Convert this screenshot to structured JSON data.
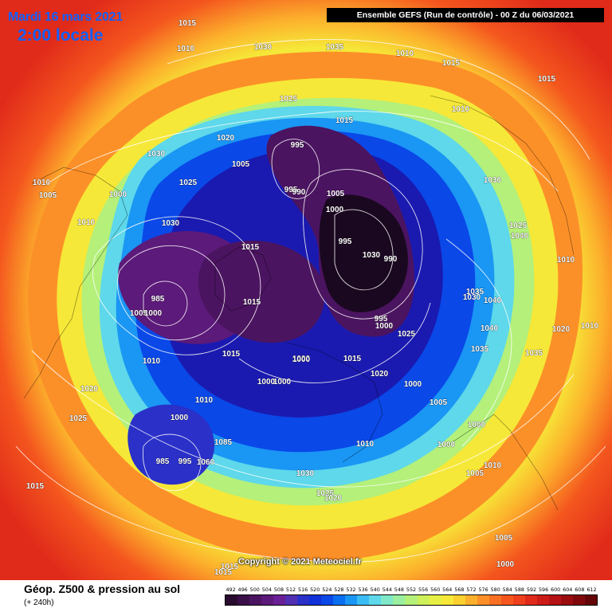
{
  "header": {
    "date": "Mardi 16 mars 2021",
    "time": "2:00 locale",
    "run": "Ensemble GEFS  (Run de contrôle)  -  00 Z du 06/03/2021"
  },
  "footer": {
    "copyright": "Copyright © 2021 Meteociel.fr",
    "title": "Géop. Z500 & pression au sol",
    "subtitle": "(+ 240h)"
  },
  "scale": {
    "labels": [
      "492",
      "496",
      "500",
      "504",
      "508",
      "512",
      "516",
      "520",
      "524",
      "528",
      "532",
      "536",
      "540",
      "544",
      "548",
      "552",
      "556",
      "560",
      "564",
      "568",
      "572",
      "576",
      "580",
      "584",
      "588",
      "592",
      "596",
      "600",
      "604",
      "608",
      "612"
    ],
    "colors": [
      "#2a0a2e",
      "#3a0f47",
      "#4b1460",
      "#5c1a7a",
      "#6a2096",
      "#5030b0",
      "#2a30c8",
      "#1030d8",
      "#0a48e8",
      "#0a6ef0",
      "#1a96f4",
      "#3abcf4",
      "#5ed8ea",
      "#7ee8c8",
      "#9af0a0",
      "#b4f07a",
      "#cef05a",
      "#e6f044",
      "#f6e838",
      "#fcd030",
      "#fcb02c",
      "#fc9028",
      "#f87022",
      "#f4561e",
      "#ee401c",
      "#e02a1a",
      "#cc1c18",
      "#b41214",
      "#9a0c10",
      "#80080c",
      "#640408"
    ]
  },
  "pressure_labels": [
    "1015",
    "1010",
    "1030",
    "1035",
    "1010",
    "1015",
    "1015",
    "1025",
    "1015",
    "1010",
    "1020",
    "995",
    "1030",
    "1030",
    "1005",
    "1025",
    "995",
    "990",
    "1005",
    "1010",
    "1005",
    "1000",
    "1000",
    "1030",
    "1015",
    "1010",
    "1025",
    "1040",
    "995",
    "990",
    "1030",
    "1010",
    "1035",
    "1030",
    "1040",
    "985",
    "1015",
    "1005",
    "1000",
    "995",
    "1000",
    "1025",
    "1015",
    "1010",
    "1000",
    "1000",
    "1020",
    "1015",
    "1000",
    "1040",
    "1035",
    "1020",
    "1010",
    "1020",
    "1025",
    "1000",
    "1005",
    "1000",
    "1085",
    "985",
    "995",
    "1060",
    "1010",
    "1000",
    "1030",
    "1025",
    "1020",
    "1005",
    "1015",
    "1010",
    "1005",
    "1000",
    "1015",
    "1015",
    "1000",
    "1000",
    "1010",
    "1035"
  ]
}
